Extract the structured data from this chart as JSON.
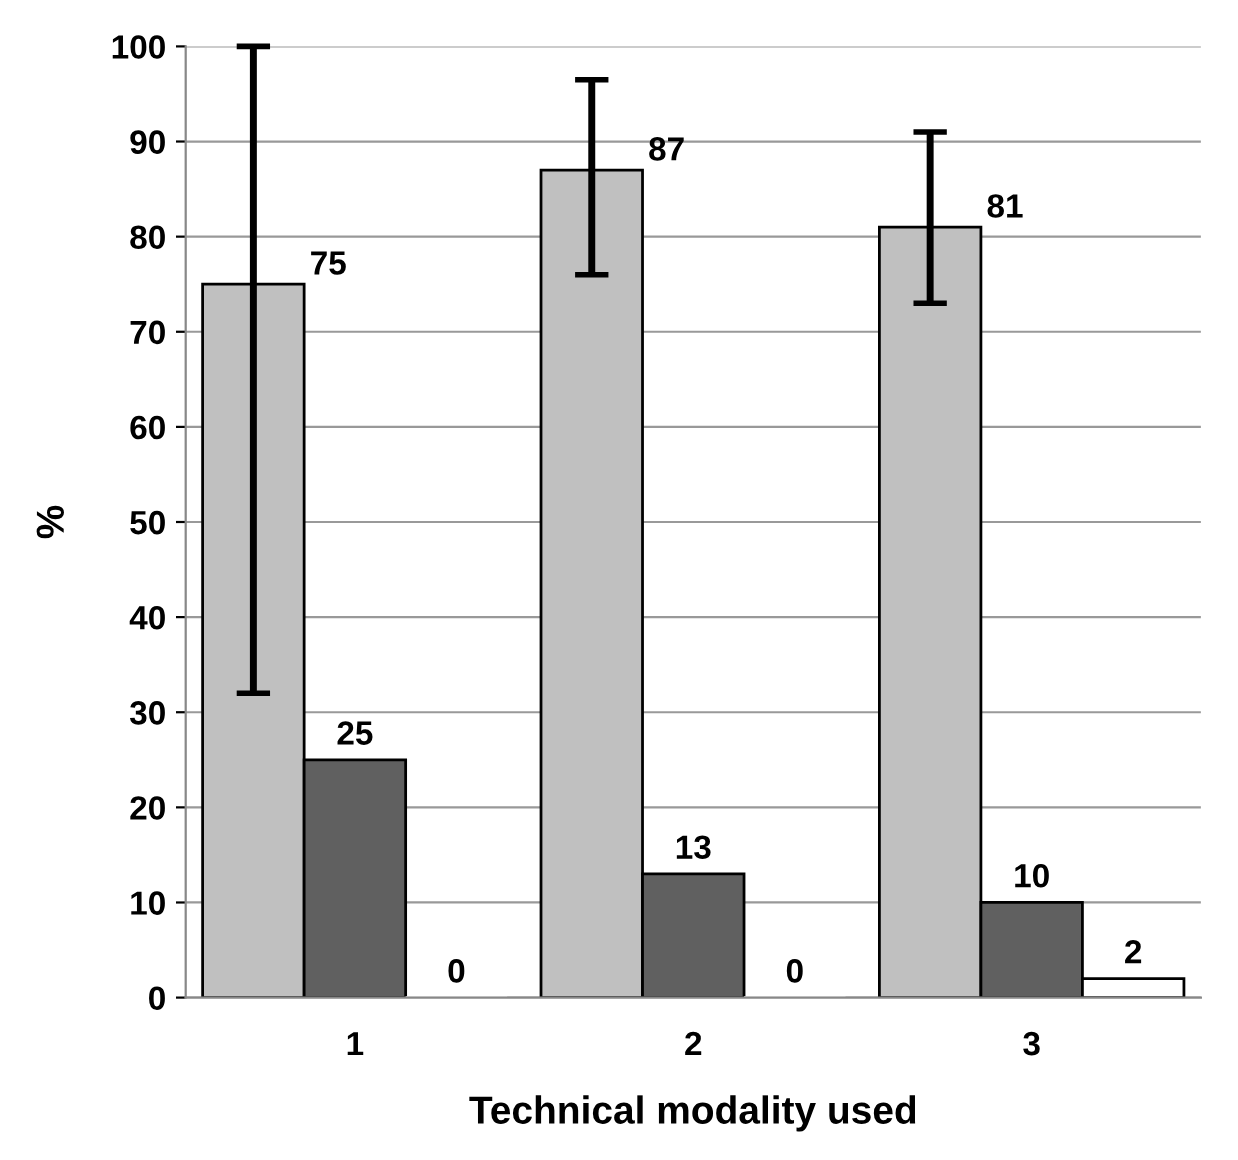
{
  "chart_data": {
    "type": "bar",
    "xlabel": "Technical modality used",
    "ylabel": "%",
    "categories": [
      "1",
      "2",
      "3"
    ],
    "series": [
      {
        "color": "#c0c0c0",
        "values": [
          75,
          87,
          81
        ],
        "errors": [
          [
            32,
            100
          ],
          [
            76,
            96.5
          ],
          [
            73,
            91
          ]
        ]
      },
      {
        "color": "#606060",
        "values": [
          25,
          13,
          10
        ]
      },
      {
        "color": "#ffffff",
        "values": [
          0,
          0,
          2
        ]
      }
    ],
    "ylim": [
      0,
      100
    ],
    "yticks": [
      0,
      10,
      20,
      30,
      40,
      50,
      60,
      70,
      80,
      90,
      100
    ],
    "grid": "y",
    "legend": false,
    "data_labels": true
  }
}
